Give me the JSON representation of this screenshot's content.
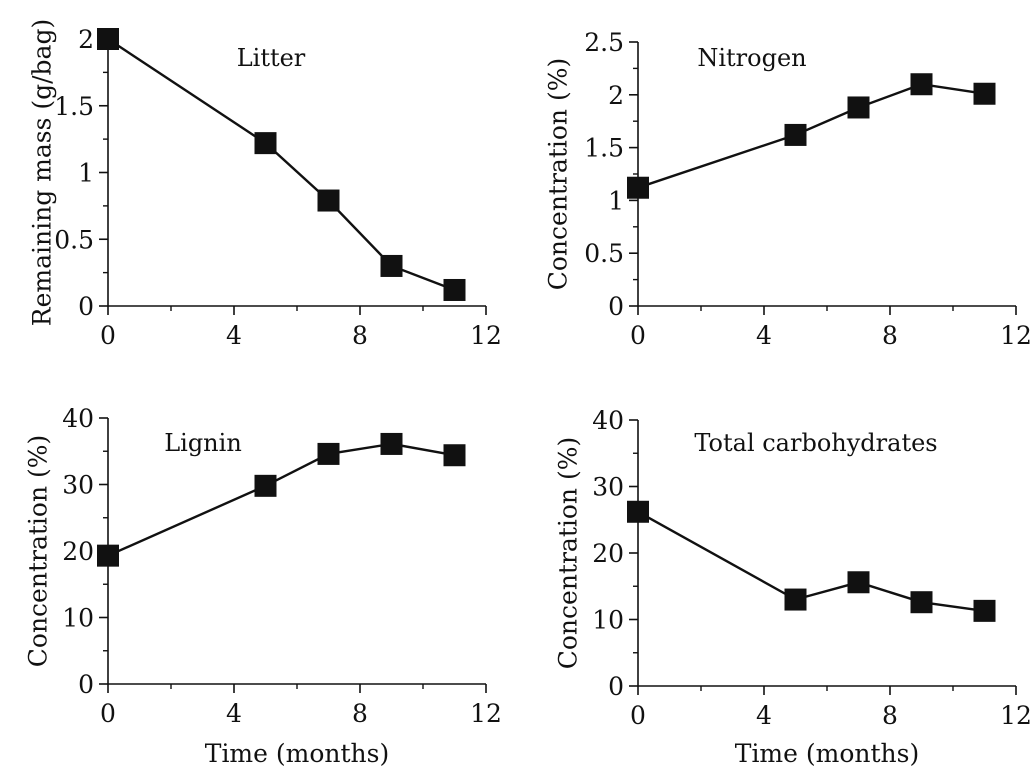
{
  "chart_data": [
    {
      "type": "line",
      "title": "Litter",
      "xlabel": "",
      "ylabel": "Remaining mass (g/bag)",
      "xlim": [
        0,
        12
      ],
      "ylim": [
        0,
        2
      ],
      "xticks": [
        "0",
        "4",
        "8",
        "12"
      ],
      "yticks": [
        "0",
        "0.5",
        "1",
        "1.5",
        "2"
      ],
      "x": [
        0,
        5,
        7,
        9,
        11
      ],
      "values": [
        2.0,
        1.22,
        0.79,
        0.3,
        0.12
      ],
      "marker": "square",
      "grid": false
    },
    {
      "type": "line",
      "title": "Nitrogen",
      "xlabel": "",
      "ylabel": "Concentration (%)",
      "xlim": [
        0,
        12
      ],
      "ylim": [
        0,
        2.5
      ],
      "xticks": [
        "0",
        "4",
        "8",
        "12"
      ],
      "yticks": [
        "0",
        "0.5",
        "1",
        "1.5",
        "2",
        "2.5"
      ],
      "x": [
        0,
        5,
        7,
        9,
        11
      ],
      "values": [
        1.12,
        1.62,
        1.88,
        2.1,
        2.01
      ],
      "marker": "square",
      "grid": false
    },
    {
      "type": "line",
      "title": "Lignin",
      "xlabel": "Time (months)",
      "ylabel": "Concentration (%)",
      "xlim": [
        0,
        12
      ],
      "ylim": [
        0,
        40
      ],
      "xticks": [
        "0",
        "4",
        "8",
        "12"
      ],
      "yticks": [
        "0",
        "10",
        "20",
        "30",
        "40"
      ],
      "x": [
        0,
        5,
        7,
        9,
        11
      ],
      "values": [
        19.3,
        29.8,
        34.6,
        36.1,
        34.4
      ],
      "marker": "square",
      "grid": false
    },
    {
      "type": "line",
      "title": "Total carbohydrates",
      "xlabel": "Time (months)",
      "ylabel": "Concentration (%)",
      "xlim": [
        0,
        12
      ],
      "ylim": [
        0,
        40
      ],
      "xticks": [
        "0",
        "4",
        "8",
        "12"
      ],
      "yticks": [
        "0",
        "10",
        "20",
        "30",
        "40"
      ],
      "x": [
        0,
        5,
        7,
        9,
        11
      ],
      "values": [
        26.2,
        13.0,
        15.6,
        12.6,
        11.3
      ],
      "marker": "square",
      "grid": false
    }
  ],
  "colors": {
    "ink": "#111111",
    "background": "#ffffff"
  }
}
